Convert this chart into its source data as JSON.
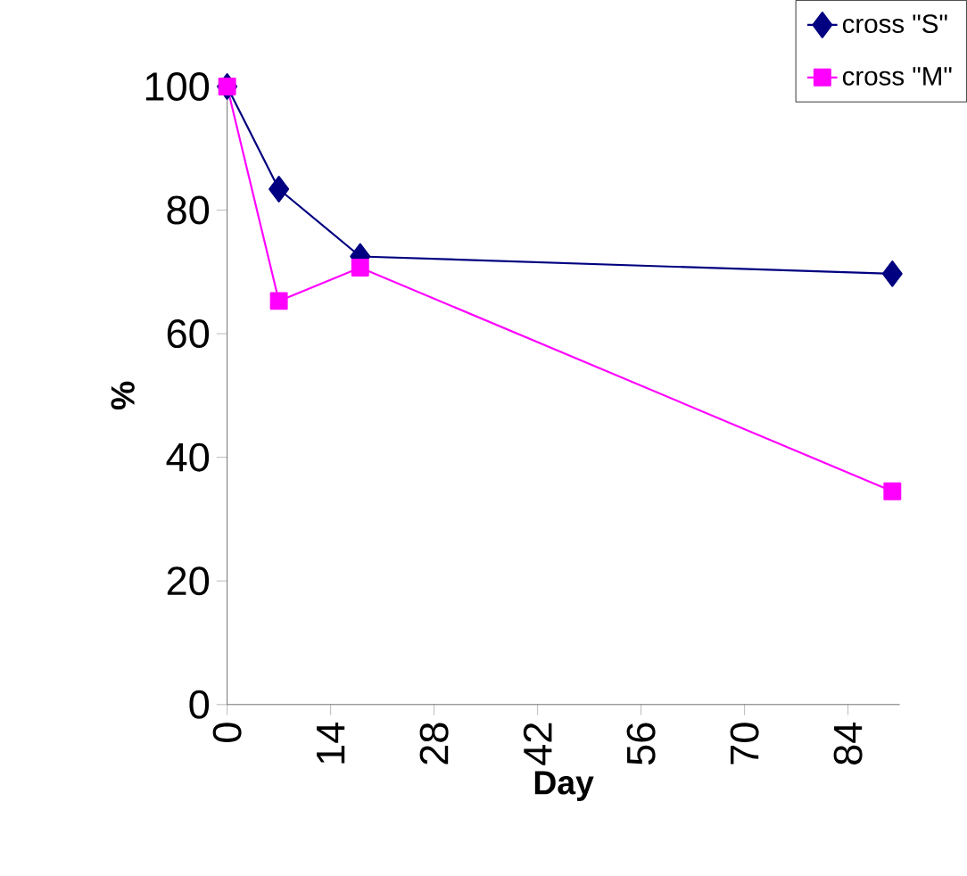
{
  "chart_data": {
    "type": "line",
    "xlabel": "Day",
    "ylabel": "%",
    "xlim": [
      0,
      91
    ],
    "xticks": [
      0,
      14,
      28,
      42,
      56,
      70,
      84
    ],
    "ylim": [
      0,
      100
    ],
    "yticks": [
      0,
      20,
      40,
      60,
      80,
      100
    ],
    "grid": false,
    "legend": "top right",
    "line_style": "solid",
    "series": [
      {
        "name": "cross \"S\"",
        "color": "#000080",
        "marker": "diamond",
        "x": [
          0,
          7,
          18,
          90
        ],
        "values": [
          100,
          83.4,
          72.5,
          69.7
        ]
      },
      {
        "name": "cross \"M\"",
        "color": "#ff00ff",
        "marker": "square",
        "x": [
          0,
          7,
          18,
          90
        ],
        "values": [
          100,
          65.3,
          70.7,
          34.5
        ]
      }
    ]
  }
}
